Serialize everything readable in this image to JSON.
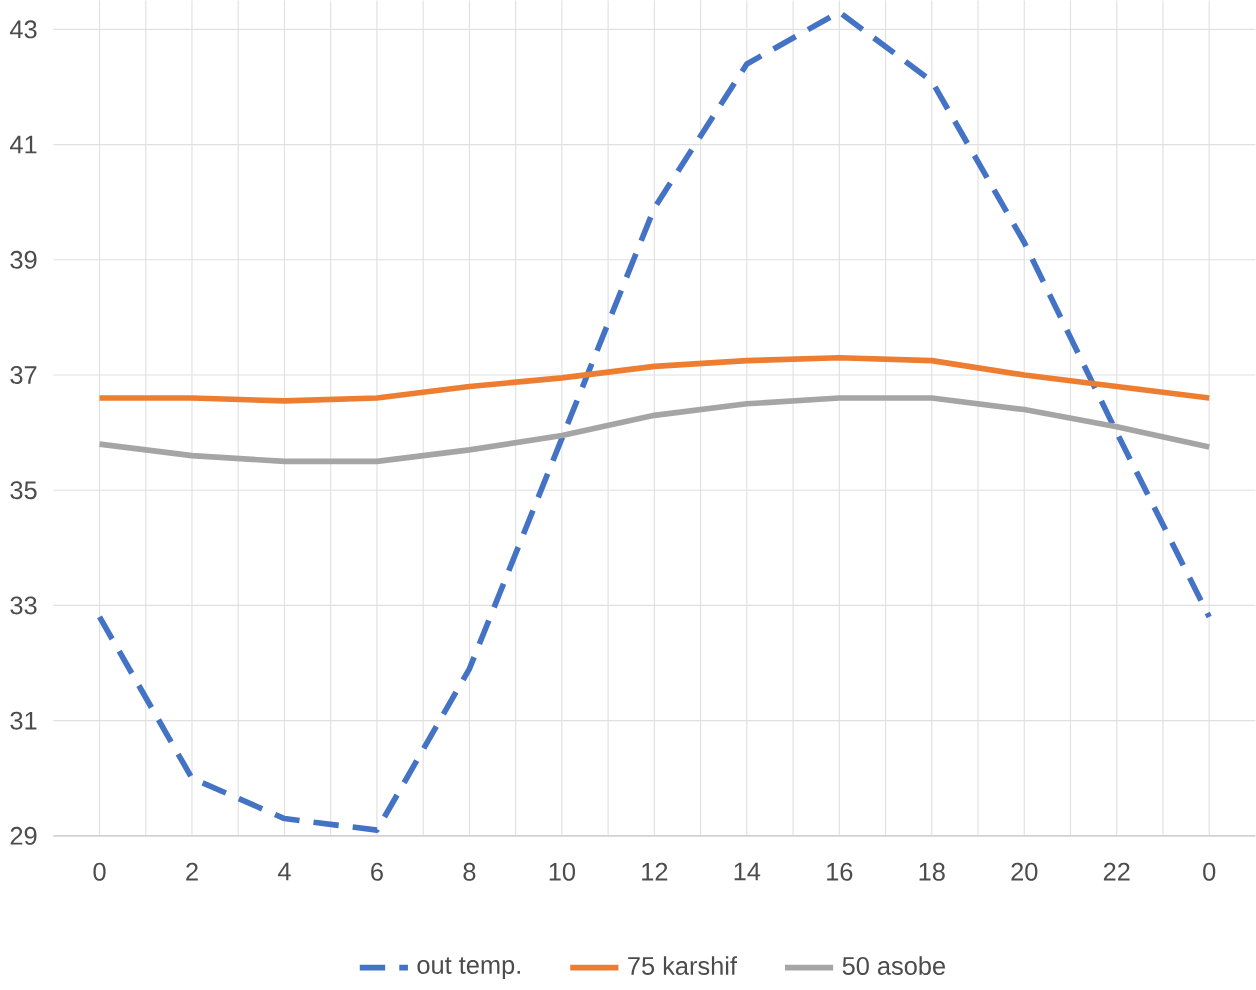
{
  "chart_data": {
    "type": "line",
    "categories": [
      "0",
      "2",
      "4",
      "6",
      "8",
      "10",
      "12",
      "14",
      "16",
      "18",
      "20",
      "22",
      "0"
    ],
    "series": [
      {
        "name": "out temp.",
        "color": "#4472c4",
        "line_style": "dashed",
        "values": [
          32.8,
          30.0,
          29.3,
          29.1,
          31.9,
          35.9,
          39.9,
          42.4,
          43.3,
          42.1,
          39.3,
          36.0,
          32.8
        ]
      },
      {
        "name": "75 karshif",
        "color": "#ed7d31",
        "values": [
          36.6,
          36.6,
          36.55,
          36.6,
          36.8,
          36.95,
          37.15,
          37.25,
          37.3,
          37.25,
          37.0,
          36.8,
          36.6
        ]
      },
      {
        "name": "50 asobe",
        "color": "#a5a5a5",
        "values": [
          35.8,
          35.6,
          35.5,
          35.5,
          35.7,
          35.95,
          36.3,
          36.5,
          36.6,
          36.6,
          36.4,
          36.1,
          35.75
        ]
      }
    ],
    "ylim": [
      29,
      43.5
    ],
    "yticks": [
      29,
      31,
      33,
      35,
      37,
      39,
      41,
      43
    ],
    "grid": true,
    "legend": "bottom",
    "marker": "none"
  }
}
